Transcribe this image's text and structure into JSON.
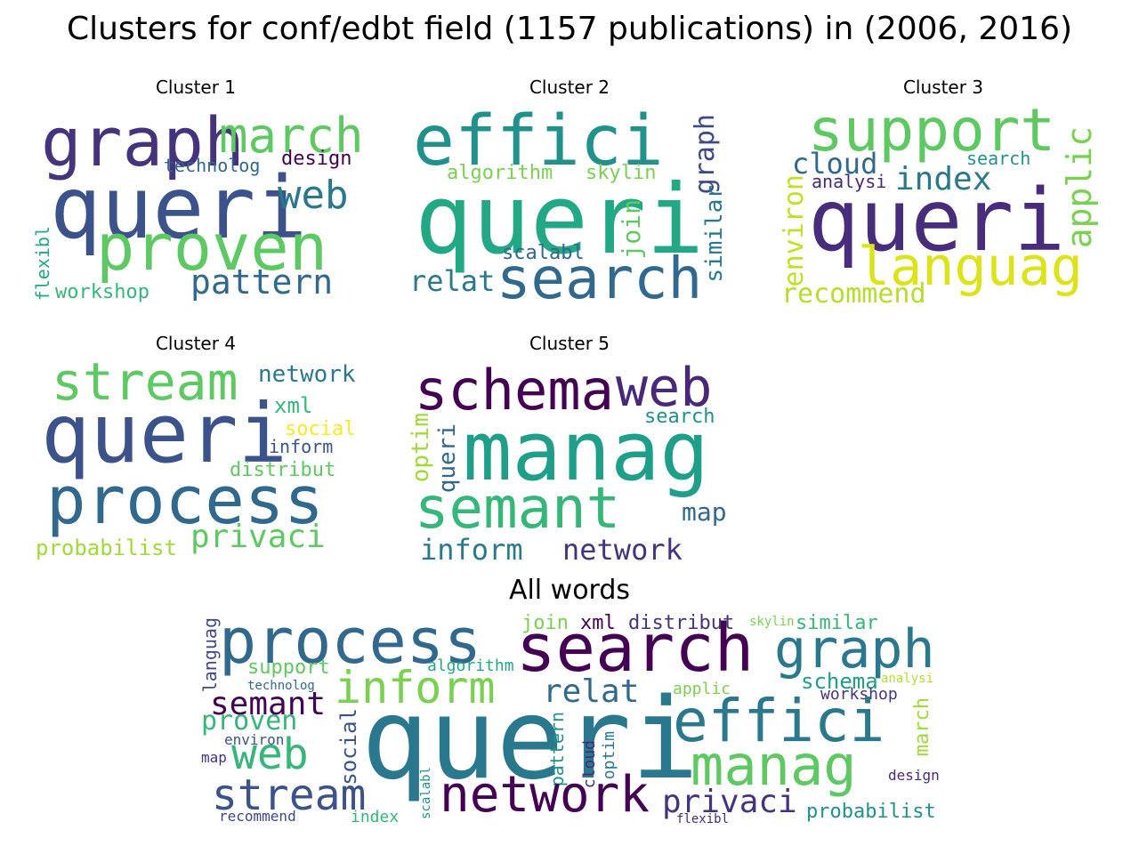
{
  "title": "Clusters for conf/edbt field (1157 publications) in (2006, 2016)",
  "panels": [
    {
      "title": "Cluster 1",
      "words": [
        {
          "text": "graph",
          "color": "#46337e"
        },
        {
          "text": "march",
          "color": "#5ec962"
        },
        {
          "text": "technolog",
          "color": "#31688e"
        },
        {
          "text": "design",
          "color": "#440154"
        },
        {
          "text": "queri",
          "color": "#3b528b"
        },
        {
          "text": "web",
          "color": "#2a788e"
        },
        {
          "text": "proven",
          "color": "#5ec962"
        },
        {
          "text": "flexibl",
          "color": "#22a884"
        },
        {
          "text": "pattern",
          "color": "#31688e"
        },
        {
          "text": "workshop",
          "color": "#35b779"
        }
      ]
    },
    {
      "title": "Cluster 2",
      "words": [
        {
          "text": "effici",
          "color": "#21918c"
        },
        {
          "text": "graph",
          "color": "#3e4989"
        },
        {
          "text": "algorithm",
          "color": "#7ad151"
        },
        {
          "text": "skylin",
          "color": "#7ad151"
        },
        {
          "text": "queri",
          "color": "#22a884"
        },
        {
          "text": "join",
          "color": "#5ec962"
        },
        {
          "text": "similar",
          "color": "#2a788e"
        },
        {
          "text": "scalabl",
          "color": "#31688e"
        },
        {
          "text": "relat",
          "color": "#2a788e"
        },
        {
          "text": "search",
          "color": "#31688e"
        }
      ]
    },
    {
      "title": "Cluster 3",
      "words": [
        {
          "text": "support",
          "color": "#5ec962"
        },
        {
          "text": "applic",
          "color": "#7ad151"
        },
        {
          "text": "cloud",
          "color": "#31688e"
        },
        {
          "text": "search",
          "color": "#21918c"
        },
        {
          "text": "analysi",
          "color": "#482878"
        },
        {
          "text": "index",
          "color": "#2a788e"
        },
        {
          "text": "environ",
          "color": "#c2df23"
        },
        {
          "text": "queri",
          "color": "#472d7b"
        },
        {
          "text": "languag",
          "color": "#dde318"
        },
        {
          "text": "recommend",
          "color": "#b5de2b"
        }
      ]
    },
    {
      "title": "Cluster 4",
      "words": [
        {
          "text": "stream",
          "color": "#5ec962"
        },
        {
          "text": "network",
          "color": "#2a788e"
        },
        {
          "text": "xml",
          "color": "#35b779"
        },
        {
          "text": "queri",
          "color": "#3b528b"
        },
        {
          "text": "social",
          "color": "#fde725"
        },
        {
          "text": "inform",
          "color": "#3b528b"
        },
        {
          "text": "distribut",
          "color": "#5ec962"
        },
        {
          "text": "process",
          "color": "#31688e"
        },
        {
          "text": "privaci",
          "color": "#5ec962"
        },
        {
          "text": "probabilist",
          "color": "#a0da39"
        }
      ]
    },
    {
      "title": "Cluster 5",
      "words": [
        {
          "text": "schema",
          "color": "#440154"
        },
        {
          "text": "web",
          "color": "#482878"
        },
        {
          "text": "search",
          "color": "#21918c"
        },
        {
          "text": "optim",
          "color": "#a0da39"
        },
        {
          "text": "queri",
          "color": "#31688e"
        },
        {
          "text": "manag",
          "color": "#1f9e89"
        },
        {
          "text": "semant",
          "color": "#35b779"
        },
        {
          "text": "map",
          "color": "#31688e"
        },
        {
          "text": "inform",
          "color": "#2a788e"
        },
        {
          "text": "network",
          "color": "#46337e"
        }
      ]
    }
  ],
  "all_words": {
    "title": "All words",
    "words": [
      {
        "text": "process",
        "color": "#31688e"
      },
      {
        "text": "search",
        "color": "#440154"
      },
      {
        "text": "graph",
        "color": "#2a788e"
      },
      {
        "text": "join",
        "color": "#7ad151"
      },
      {
        "text": "xml",
        "color": "#440154"
      },
      {
        "text": "distribut",
        "color": "#46337e"
      },
      {
        "text": "skylin",
        "color": "#7ad151"
      },
      {
        "text": "similar",
        "color": "#35b779"
      },
      {
        "text": "languag",
        "color": "#3e4989"
      },
      {
        "text": "support",
        "color": "#5ec962"
      },
      {
        "text": "algorithm",
        "color": "#22a884"
      },
      {
        "text": "inform",
        "color": "#7ad151"
      },
      {
        "text": "relat",
        "color": "#31688e"
      },
      {
        "text": "schema",
        "color": "#1f9e89"
      },
      {
        "text": "analysi",
        "color": "#b5de2b"
      },
      {
        "text": "technolog",
        "color": "#31688e"
      },
      {
        "text": "applic",
        "color": "#7ad151"
      },
      {
        "text": "workshop",
        "color": "#46337e"
      },
      {
        "text": "semant",
        "color": "#440154"
      },
      {
        "text": "proven",
        "color": "#35b779"
      },
      {
        "text": "march",
        "color": "#a0da39"
      },
      {
        "text": "environ",
        "color": "#3b528b"
      },
      {
        "text": "queri",
        "color": "#2a788e"
      },
      {
        "text": "effici",
        "color": "#2a788e"
      },
      {
        "text": "web",
        "color": "#35b779"
      },
      {
        "text": "social",
        "color": "#3b528b"
      },
      {
        "text": "pattern",
        "color": "#21918c"
      },
      {
        "text": "cloud",
        "color": "#482878"
      },
      {
        "text": "optim",
        "color": "#2a788e"
      },
      {
        "text": "map",
        "color": "#46337e"
      },
      {
        "text": "manag",
        "color": "#5ec962"
      },
      {
        "text": "design",
        "color": "#482878"
      },
      {
        "text": "stream",
        "color": "#3b528b"
      },
      {
        "text": "network",
        "color": "#440154"
      },
      {
        "text": "privaci",
        "color": "#46337e"
      },
      {
        "text": "probabilist",
        "color": "#21918c"
      },
      {
        "text": "recommend",
        "color": "#3e4989"
      },
      {
        "text": "index",
        "color": "#35b779"
      },
      {
        "text": "scalabl",
        "color": "#21918c"
      },
      {
        "text": "flexibl",
        "color": "#482878"
      }
    ]
  }
}
